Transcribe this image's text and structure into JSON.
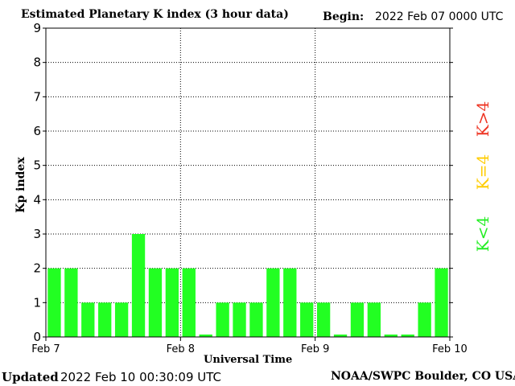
{
  "header": {
    "title": "Estimated Planetary K index (3 hour data)",
    "begin_label": "Begin:",
    "begin_value": "2022 Feb 07 0000 UTC"
  },
  "footer": {
    "updated_label": "Updated",
    "updated_value": "2022 Feb 10 00:30:09 UTC",
    "credit": "NOAA/SWPC Boulder, CO USA"
  },
  "legend": [
    {
      "label": "K<4",
      "color": "#22ee22"
    },
    {
      "label": "K=4",
      "color": "#ffcc00"
    },
    {
      "label": "K>4",
      "color": "#ee3322"
    }
  ],
  "chart_data": {
    "type": "bar",
    "title": "Estimated Planetary K index (3 hour data)",
    "xlabel": "Universal Time",
    "ylabel": "Kp index",
    "ylim": [
      0,
      9
    ],
    "yticks": [
      "0",
      "1",
      "2",
      "3",
      "4",
      "5",
      "6",
      "7",
      "8",
      "9"
    ],
    "xticks": [
      "Feb 7",
      "Feb 8",
      "Feb 9",
      "Feb 10"
    ],
    "grid": true,
    "bar_color": "#22ff22",
    "values": [
      2,
      2,
      1,
      1,
      1,
      3,
      2,
      2,
      2,
      0.07,
      1,
      1,
      1,
      2,
      2,
      1,
      1,
      0.07,
      1,
      1,
      0.07,
      0.07,
      1,
      2
    ]
  }
}
